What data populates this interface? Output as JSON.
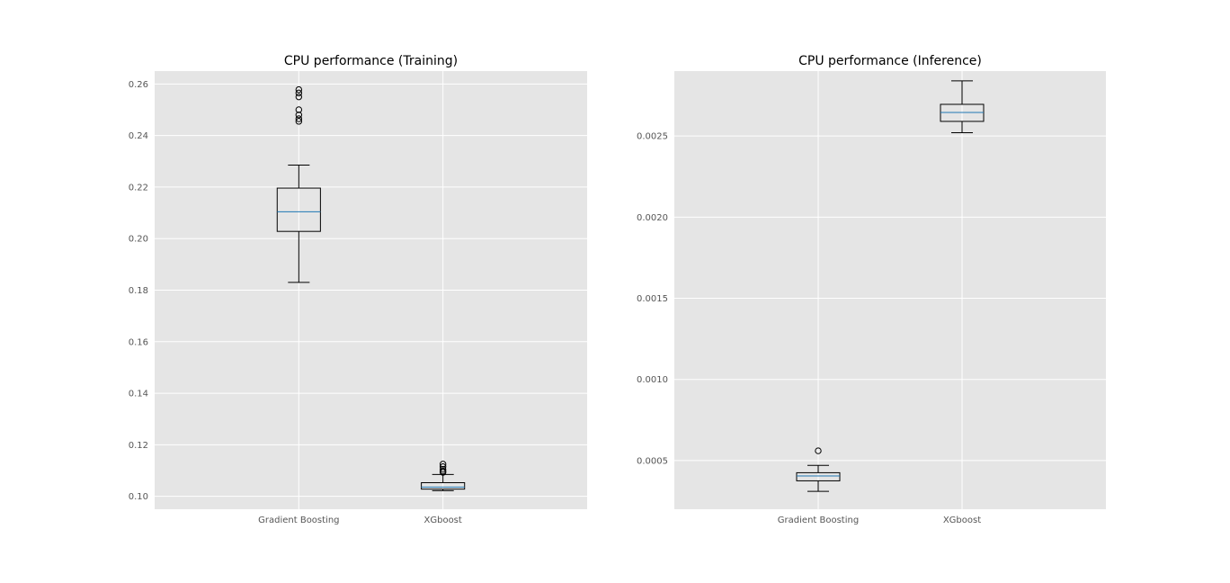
{
  "colors": {
    "background": "#E5E5E5",
    "grid": "#FFFFFF",
    "box": "#000000",
    "median": "#1F77B4",
    "tick_text": "#555555"
  },
  "chart_data": [
    {
      "type": "box",
      "title": "CPU performance (Training)",
      "xlabel": "",
      "ylabel": "",
      "categories": [
        "Gradient Boosting",
        "XGboost"
      ],
      "ylim": [
        0.095,
        0.265
      ],
      "yticks": [
        0.1,
        0.12,
        0.14,
        0.16,
        0.18,
        0.2,
        0.22,
        0.24,
        0.26
      ],
      "ytick_labels": [
        "0.10",
        "0.12",
        "0.14",
        "0.16",
        "0.18",
        "0.20",
        "0.22",
        "0.24",
        "0.26"
      ],
      "grid": true,
      "boxes": [
        {
          "category": "Gradient Boosting",
          "whislo": 0.183,
          "q1": 0.2028,
          "median": 0.2104,
          "q3": 0.2196,
          "whishi": 0.2285,
          "fliers": [
            0.2455,
            0.2465,
            0.248,
            0.25,
            0.255,
            0.2565,
            0.2578
          ]
        },
        {
          "category": "XGboost",
          "whislo": 0.1022,
          "q1": 0.1028,
          "median": 0.1036,
          "q3": 0.1053,
          "whishi": 0.1085,
          "fliers": [
            0.1093,
            0.1098,
            0.1105,
            0.1115,
            0.1125
          ]
        }
      ]
    },
    {
      "type": "box",
      "title": "CPU performance (Inference)",
      "xlabel": "",
      "ylabel": "",
      "categories": [
        "Gradient Boosting",
        "XGboost"
      ],
      "ylim": [
        0.0002,
        0.0029
      ],
      "yticks": [
        0.0005,
        0.001,
        0.0015,
        0.002,
        0.0025
      ],
      "ytick_labels": [
        "0.0005",
        "0.0010",
        "0.0015",
        "0.0020",
        "0.0025"
      ],
      "grid": true,
      "boxes": [
        {
          "category": "Gradient Boosting",
          "whislo": 0.00031,
          "q1": 0.000375,
          "median": 0.000405,
          "q3": 0.000425,
          "whishi": 0.00047,
          "fliers": [
            0.00056
          ]
        },
        {
          "category": "XGboost",
          "whislo": 0.00252,
          "q1": 0.00259,
          "median": 0.002645,
          "q3": 0.002695,
          "whishi": 0.00284,
          "fliers": []
        }
      ]
    }
  ]
}
